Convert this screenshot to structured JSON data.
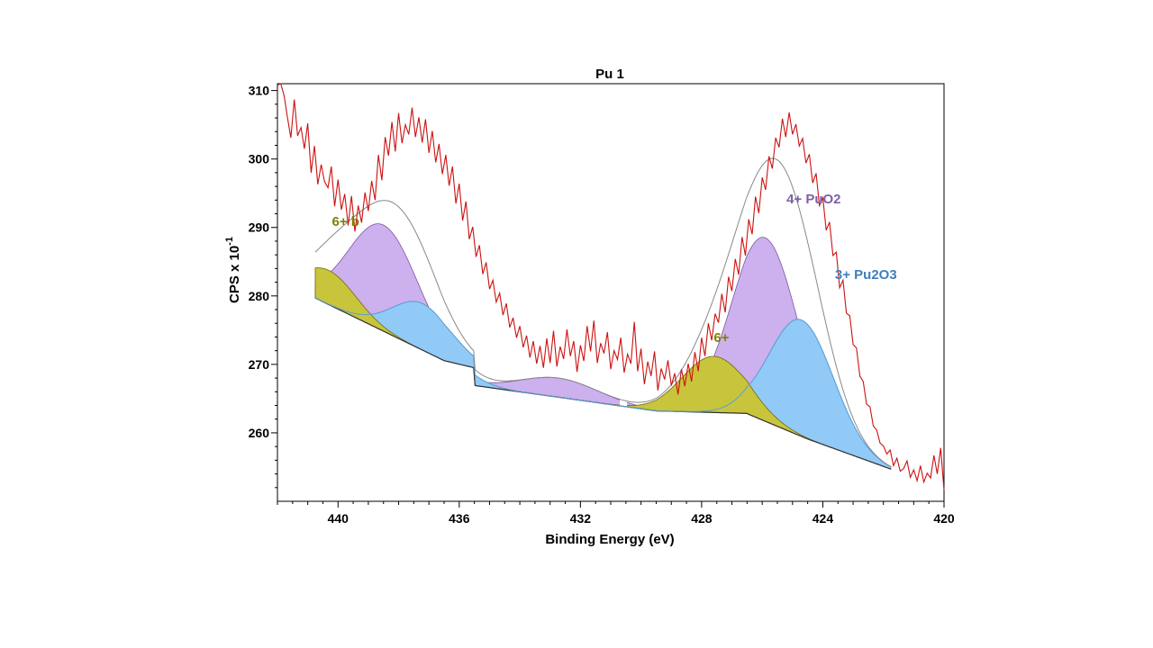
{
  "chart_data": {
    "type": "line",
    "title": "Pu 1",
    "xlabel": "Binding Energy (eV)",
    "ylabel": "CPS x 10",
    "ylabel_exp": "-1",
    "xlim": [
      442,
      420
    ],
    "ylim": [
      250,
      311
    ],
    "xticks": [
      440,
      436,
      432,
      428,
      424,
      420
    ],
    "xtick_labels": [
      "440",
      "436",
      "432",
      "428",
      "424",
      "420"
    ],
    "yticks": [
      260,
      270,
      280,
      290,
      300,
      310
    ],
    "ytick_labels": [
      "260",
      "270",
      "280",
      "290",
      "300",
      "310"
    ],
    "colors": {
      "raw": "#cc1111",
      "envelope": "#888888",
      "background": "#333333",
      "pu6": "#c8c43c",
      "pu6_text": "#7f7f00",
      "pu4": "#cdb0ee",
      "pu4_text": "#7f5fa8",
      "pu3": "#91c9f7",
      "pu3_text": "#3f7fbf",
      "pu3_line": "#5a9fd4"
    },
    "annotations": [
      {
        "text": "6+  b",
        "x": 440.2,
        "y": 290.2,
        "color_key": "pu6_text"
      },
      {
        "text": "4+ PuO2",
        "x": 425.2,
        "y": 293.5,
        "color_key": "pu4_text"
      },
      {
        "text": "3+ Pu2O3",
        "x": 423.6,
        "y": 282.5,
        "color_key": "pu3_text"
      },
      {
        "text": "6+",
        "x": 427.6,
        "y": 273.3,
        "color_key": "pu6_text"
      }
    ],
    "raw_data": {
      "x_start": 442.0,
      "x_end": 420.0,
      "y": [
        310.8,
        311.5,
        309.2,
        306.0,
        303.1,
        308.7,
        303.4,
        304.6,
        301.5,
        305.2,
        298.0,
        301.9,
        296.3,
        299.2,
        296.7,
        295.8,
        298.9,
        293.1,
        297.0,
        292.6,
        294.9,
        290.3,
        294.6,
        289.4,
        293.2,
        290.7,
        295.1,
        292.4,
        296.8,
        294.0,
        300.6,
        296.9,
        303.2,
        300.5,
        305.4,
        301.1,
        306.7,
        302.3,
        305.0,
        303.6,
        307.5,
        303.2,
        306.1,
        302.4,
        305.8,
        300.9,
        304.1,
        299.5,
        302.2,
        297.8,
        300.6,
        296.1,
        298.9,
        293.5,
        296.4,
        291.0,
        293.8,
        288.3,
        290.1,
        285.7,
        287.4,
        283.2,
        284.9,
        281.0,
        282.3,
        279.1,
        280.4,
        277.2,
        278.9,
        275.4,
        276.8,
        273.9,
        275.6,
        272.5,
        274.2,
        271.0,
        273.4,
        270.1,
        272.7,
        269.5,
        273.8,
        270.2,
        274.9,
        269.7,
        272.6,
        270.8,
        275.1,
        271.2,
        273.4,
        268.9,
        272.8,
        270.5,
        275.6,
        271.9,
        276.4,
        270.2,
        273.1,
        271.6,
        274.7,
        269.3,
        272.0,
        270.7,
        273.9,
        268.8,
        271.5,
        270.1,
        276.2,
        269.0,
        272.3,
        267.1,
        270.4,
        268.3,
        271.9,
        266.2,
        269.4,
        267.8,
        270.6,
        266.9,
        268.7,
        265.6,
        269.3,
        266.8,
        270.1,
        267.5,
        271.8,
        269.0,
        273.9,
        271.2,
        276.0,
        273.5,
        277.4,
        276.1,
        280.3,
        277.6,
        282.8,
        280.7,
        285.4,
        283.1,
        288.6,
        285.9,
        291.2,
        289.0,
        294.5,
        292.1,
        297.3,
        295.5,
        300.4,
        298.6,
        303.1,
        301.7,
        305.9,
        303.2,
        306.8,
        303.6,
        305.1,
        301.9,
        303.0,
        299.4,
        300.7,
        296.5,
        297.9,
        293.2,
        294.3,
        289.6,
        290.8,
        285.9,
        286.4,
        281.2,
        282.3,
        277.5,
        277.1,
        272.9,
        272.4,
        268.3,
        267.5,
        264.2,
        263.8,
        261.0,
        260.4,
        258.5,
        258.1,
        256.9,
        257.5,
        255.2,
        256.3,
        254.4,
        254.8,
        255.9,
        253.5,
        254.6,
        253.0,
        255.2,
        252.8,
        254.1,
        253.4,
        256.7,
        254.0,
        257.8,
        251.6
      ]
    },
    "series": [
      {
        "name": "Envelope",
        "type": "line",
        "color_key": "envelope"
      },
      {
        "name": "Background",
        "type": "line",
        "color_key": "background"
      },
      {
        "name": "6+",
        "type": "area",
        "color_key": "pu6",
        "peaks": [
          {
            "center": 440.3,
            "height": 5.0,
            "width": 0.9
          },
          {
            "center": 427.6,
            "height": 8.2,
            "width": 1.05
          }
        ]
      },
      {
        "name": "4+ PuO2",
        "type": "area",
        "color_key": "pu4",
        "peaks": [
          {
            "center": 438.5,
            "height": 15.5,
            "width": 1.15
          },
          {
            "center": 425.9,
            "height": 26.8,
            "width": 1.1
          },
          {
            "center": 432.7,
            "height": 2.8,
            "width": 1.3
          }
        ]
      },
      {
        "name": "3+ Pu2O3",
        "type": "area",
        "color_key": "pu3",
        "peaks": [
          {
            "center": 437.2,
            "height": 6.8,
            "width": 1.0
          },
          {
            "center": 424.7,
            "height": 17.0,
            "width": 1.05
          }
        ]
      }
    ]
  }
}
